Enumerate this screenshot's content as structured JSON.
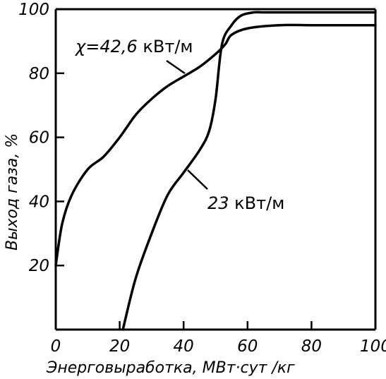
{
  "chart_data": {
    "type": "line",
    "title": "",
    "xlabel": "Энерговыработка, МВт·сут /кг",
    "ylabel": "Выход газа, %",
    "xlim": [
      0,
      100
    ],
    "ylim": [
      0,
      100
    ],
    "xticks": [
      "0",
      "20",
      "40",
      "60",
      "80",
      "100"
    ],
    "yticks": [
      "20",
      "40",
      "60",
      "80",
      "100"
    ],
    "grid": false,
    "series": [
      {
        "name": "χ=42,6 кВт/м",
        "x": [
          0,
          2,
          5,
          10,
          15,
          20,
          25,
          30,
          35,
          40,
          45,
          50,
          53,
          55,
          60,
          70,
          80,
          90,
          100
        ],
        "y": [
          20,
          33,
          42,
          50,
          54,
          60,
          67,
          72,
          76,
          79,
          82,
          86,
          89,
          92,
          94,
          95,
          95,
          95,
          95
        ]
      },
      {
        "name": "23 кВт/м",
        "x": [
          21,
          25,
          30,
          35,
          40,
          45,
          48,
          50,
          52,
          55,
          58,
          62,
          65,
          70,
          80,
          90,
          100
        ],
        "y": [
          0,
          16,
          30,
          42,
          49,
          56,
          62,
          72,
          89,
          95,
          98,
          99,
          99,
          99,
          99,
          99,
          99
        ]
      }
    ],
    "annotations": [
      {
        "label_prefix": "χ=",
        "label_value": "42,6",
        "label_unit": " кВт/м",
        "series": 0
      },
      {
        "label_value": "23",
        "label_unit": " кВт/м",
        "series": 1
      }
    ]
  }
}
